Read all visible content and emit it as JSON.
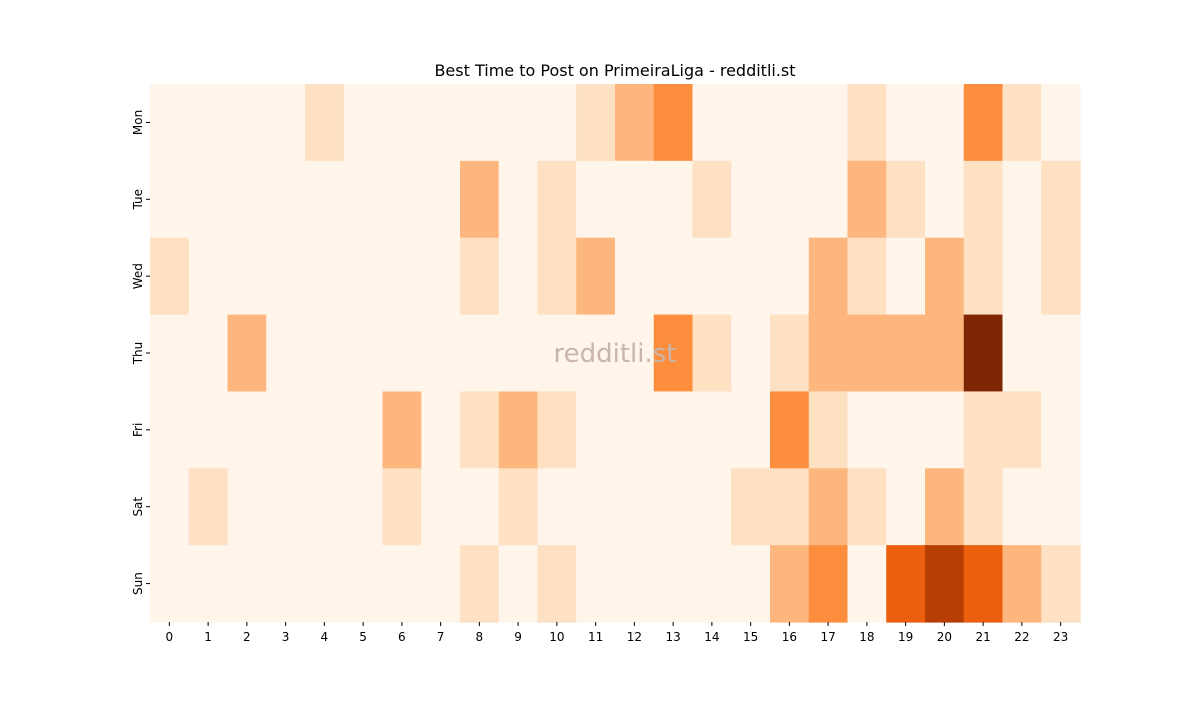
{
  "chart_data": {
    "type": "heatmap",
    "title": "Best Time to Post on PrimeiraLiga - redditli.st",
    "watermark": "redditli.st",
    "x_categories": [
      "0",
      "1",
      "2",
      "3",
      "4",
      "5",
      "6",
      "7",
      "8",
      "9",
      "10",
      "11",
      "12",
      "13",
      "14",
      "15",
      "16",
      "17",
      "18",
      "19",
      "20",
      "21",
      "22",
      "23"
    ],
    "y_categories": [
      "Mon",
      "Tue",
      "Wed",
      "Thu",
      "Fri",
      "Sat",
      "Sun"
    ],
    "values": [
      [
        0,
        0,
        0,
        0,
        1,
        0,
        0,
        0,
        0,
        0,
        0,
        1,
        2,
        3,
        0,
        0,
        0,
        0,
        1,
        0,
        0,
        3,
        1,
        0
      ],
      [
        0,
        0,
        0,
        0,
        0,
        0,
        0,
        0,
        2,
        0,
        1,
        0,
        0,
        0,
        1,
        0,
        0,
        0,
        2,
        1,
        0,
        1,
        0,
        1
      ],
      [
        1,
        0,
        0,
        0,
        0,
        0,
        0,
        0,
        1,
        0,
        1,
        2,
        0,
        0,
        0,
        0,
        0,
        2,
        1,
        0,
        2,
        1,
        0,
        1
      ],
      [
        0,
        0,
        2,
        0,
        0,
        0,
        0,
        0,
        0,
        0,
        0,
        0,
        0,
        3,
        1,
        0,
        1,
        2,
        2,
        2,
        2,
        6,
        0,
        0
      ],
      [
        0,
        0,
        0,
        0,
        0,
        0,
        2,
        0,
        1,
        2,
        1,
        0,
        0,
        0,
        0,
        0,
        3,
        1,
        0,
        0,
        0,
        1,
        1,
        0
      ],
      [
        0,
        1,
        0,
        0,
        0,
        0,
        1,
        0,
        0,
        1,
        0,
        0,
        0,
        0,
        0,
        1,
        1,
        2,
        1,
        0,
        2,
        1,
        0,
        0
      ],
      [
        0,
        0,
        0,
        0,
        0,
        0,
        0,
        0,
        1,
        0,
        1,
        0,
        0,
        0,
        0,
        0,
        2,
        3,
        0,
        4,
        5,
        4,
        2,
        1
      ]
    ],
    "colormap": "Oranges",
    "level_colors": [
      "#fff5eb",
      "#fee0c2",
      "#fdb77e",
      "#fd8e3d",
      "#ec5f0f",
      "#b83f04",
      "#7f2704"
    ],
    "grid": false,
    "colorbar": false
  }
}
